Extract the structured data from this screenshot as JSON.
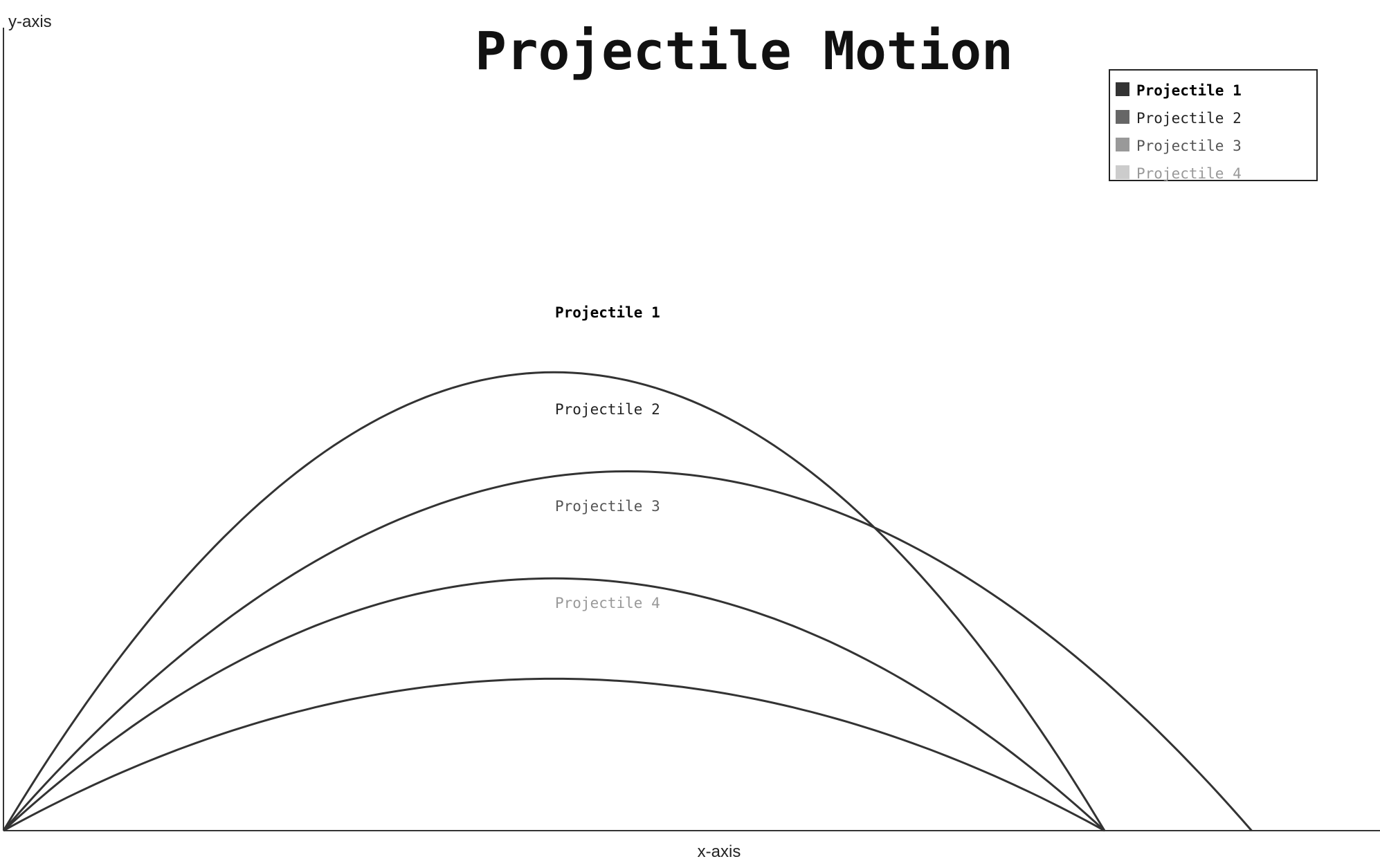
{
  "chart_data": {
    "type": "line",
    "title": "Projectile Motion",
    "xlabel": "x-axis",
    "ylabel": "y-axis",
    "xlim": [
      0,
      1994
    ],
    "ylim": [
      0,
      1200
    ],
    "grid": false,
    "legend_position": "top-right",
    "series": [
      {
        "name": "Projectile 1",
        "range": 1595,
        "peak": 685,
        "color": "#333333",
        "label_color": "#000000",
        "label_bold": true
      },
      {
        "name": "Projectile 2",
        "range": 1808,
        "peak": 537,
        "color": "#333333",
        "label_color": "#222222",
        "label_bold": false
      },
      {
        "name": "Projectile 3",
        "range": 1595,
        "peak": 377,
        "color": "#333333",
        "label_color": "#555555",
        "label_bold": false
      },
      {
        "name": "Projectile 4",
        "range": 1595,
        "peak": 227,
        "color": "#333333",
        "label_color": "#999999",
        "label_bold": false
      }
    ],
    "legend": [
      {
        "name": "Projectile 1",
        "swatch": "#333333",
        "text_color": "#000000",
        "bold": true
      },
      {
        "name": "Projectile 2",
        "swatch": "#666666",
        "text_color": "#222222",
        "bold": false
      },
      {
        "name": "Projectile 3",
        "swatch": "#999999",
        "text_color": "#555555",
        "bold": false
      },
      {
        "name": "Projectile 4",
        "swatch": "#cccccc",
        "text_color": "#999999",
        "bold": false
      }
    ]
  }
}
